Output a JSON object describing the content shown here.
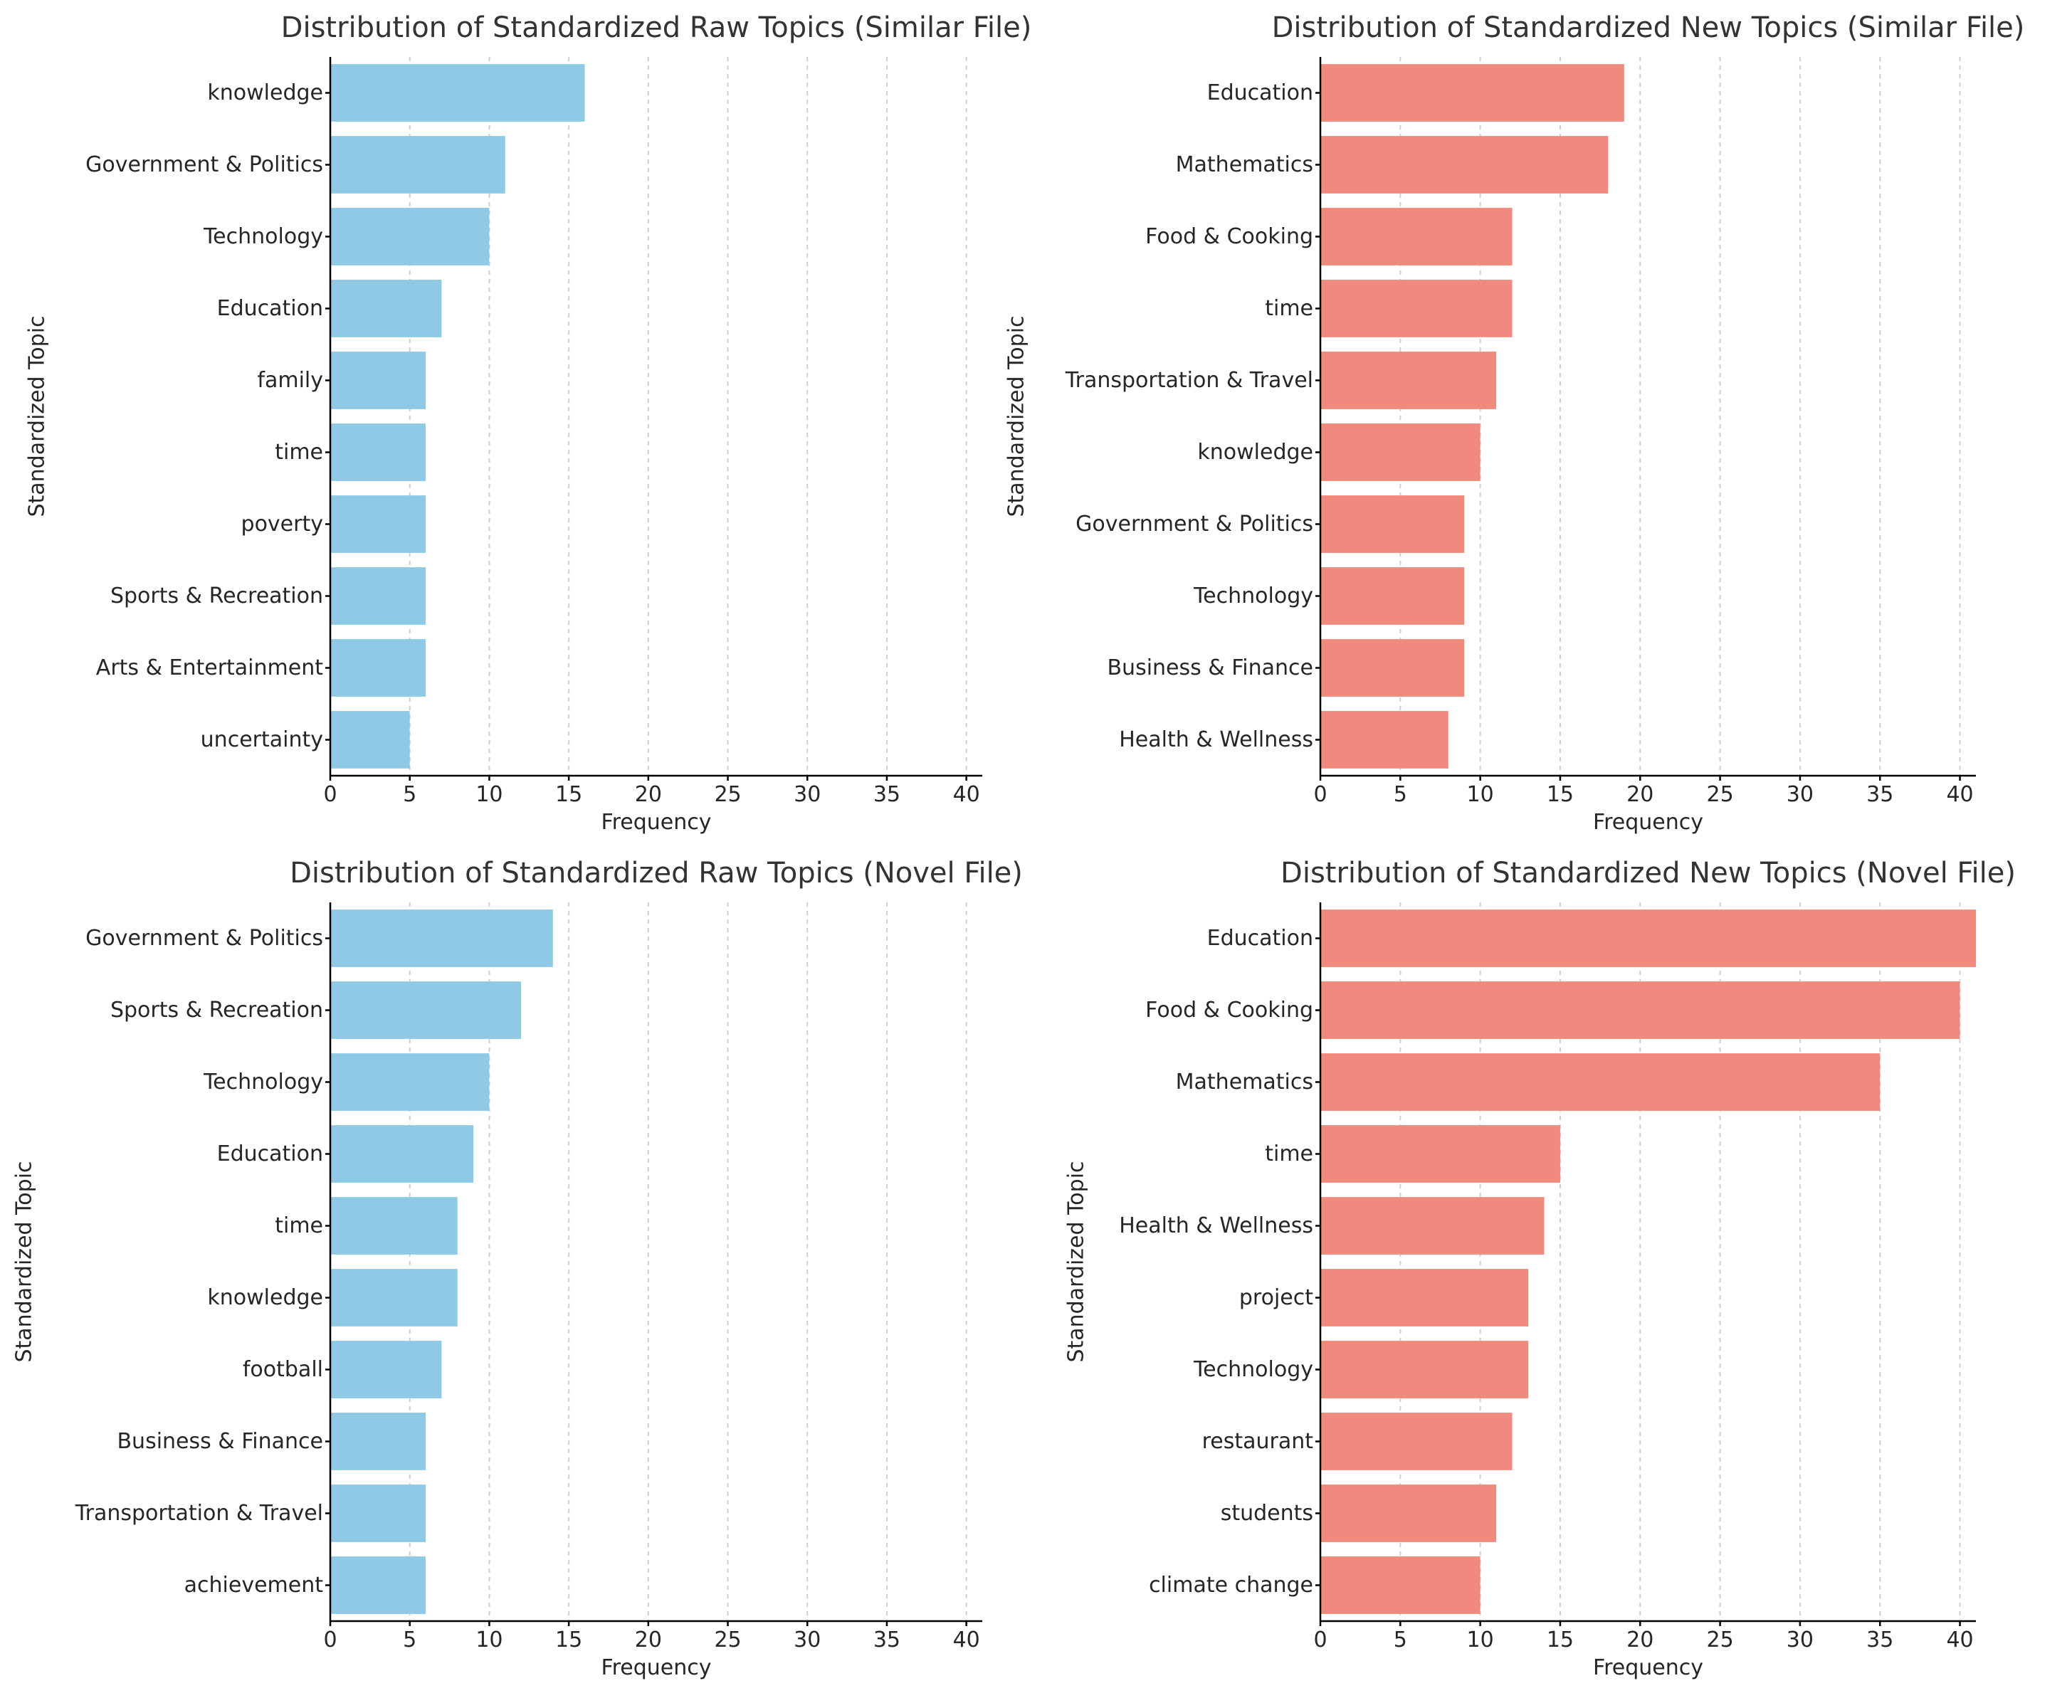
{
  "chart_data": [
    {
      "type": "bar",
      "orientation": "horizontal",
      "title": "Distribution of Standardized Raw Topics (Similar File)",
      "xlabel": "Frequency",
      "ylabel": "Standardized Topic",
      "xlim": [
        0,
        41
      ],
      "xticks": [
        0,
        5,
        10,
        15,
        20,
        25,
        30,
        35,
        40
      ],
      "grid": "x-dashed",
      "color": "#8ecae6",
      "categories": [
        "knowledge",
        "Government & Politics",
        "Technology",
        "Education",
        "family",
        "time",
        "poverty",
        "Sports & Recreation",
        "Arts & Entertainment",
        "uncertainty"
      ],
      "values": [
        16,
        11,
        10,
        7,
        6,
        6,
        6,
        6,
        6,
        5
      ]
    },
    {
      "type": "bar",
      "orientation": "horizontal",
      "title": "Distribution of Standardized New Topics (Similar File)",
      "xlabel": "Frequency",
      "ylabel": "Standardized Topic",
      "xlim": [
        0,
        41
      ],
      "xticks": [
        0,
        5,
        10,
        15,
        20,
        25,
        30,
        35,
        40
      ],
      "grid": "x-dashed",
      "color": "#f08a7e",
      "categories": [
        "Education",
        "Mathematics",
        "Food & Cooking",
        "time",
        "Transportation & Travel",
        "knowledge",
        "Government & Politics",
        "Technology",
        "Business & Finance",
        "Health & Wellness"
      ],
      "values": [
        19,
        18,
        12,
        12,
        11,
        10,
        9,
        9,
        9,
        8
      ]
    },
    {
      "type": "bar",
      "orientation": "horizontal",
      "title": "Distribution of Standardized Raw Topics (Novel File)",
      "xlabel": "Frequency",
      "ylabel": "Standardized Topic",
      "xlim": [
        0,
        41
      ],
      "xticks": [
        0,
        5,
        10,
        15,
        20,
        25,
        30,
        35,
        40
      ],
      "grid": "x-dashed",
      "color": "#8ecae6",
      "categories": [
        "Government & Politics",
        "Sports & Recreation",
        "Technology",
        "Education",
        "time",
        "knowledge",
        "football",
        "Business & Finance",
        "Transportation & Travel",
        "achievement"
      ],
      "values": [
        14,
        12,
        10,
        9,
        8,
        8,
        7,
        6,
        6,
        6
      ]
    },
    {
      "type": "bar",
      "orientation": "horizontal",
      "title": "Distribution of Standardized New Topics (Novel File)",
      "xlabel": "Frequency",
      "ylabel": "Standardized Topic",
      "xlim": [
        0,
        41
      ],
      "xticks": [
        0,
        5,
        10,
        15,
        20,
        25,
        30,
        35,
        40
      ],
      "grid": "x-dashed",
      "color": "#f08a7e",
      "categories": [
        "Education",
        "Food & Cooking",
        "Mathematics",
        "time",
        "Health & Wellness",
        "project",
        "Technology",
        "restaurant",
        "students",
        "climate change"
      ],
      "values": [
        41,
        40,
        35,
        15,
        14,
        13,
        13,
        12,
        11,
        10
      ]
    }
  ]
}
